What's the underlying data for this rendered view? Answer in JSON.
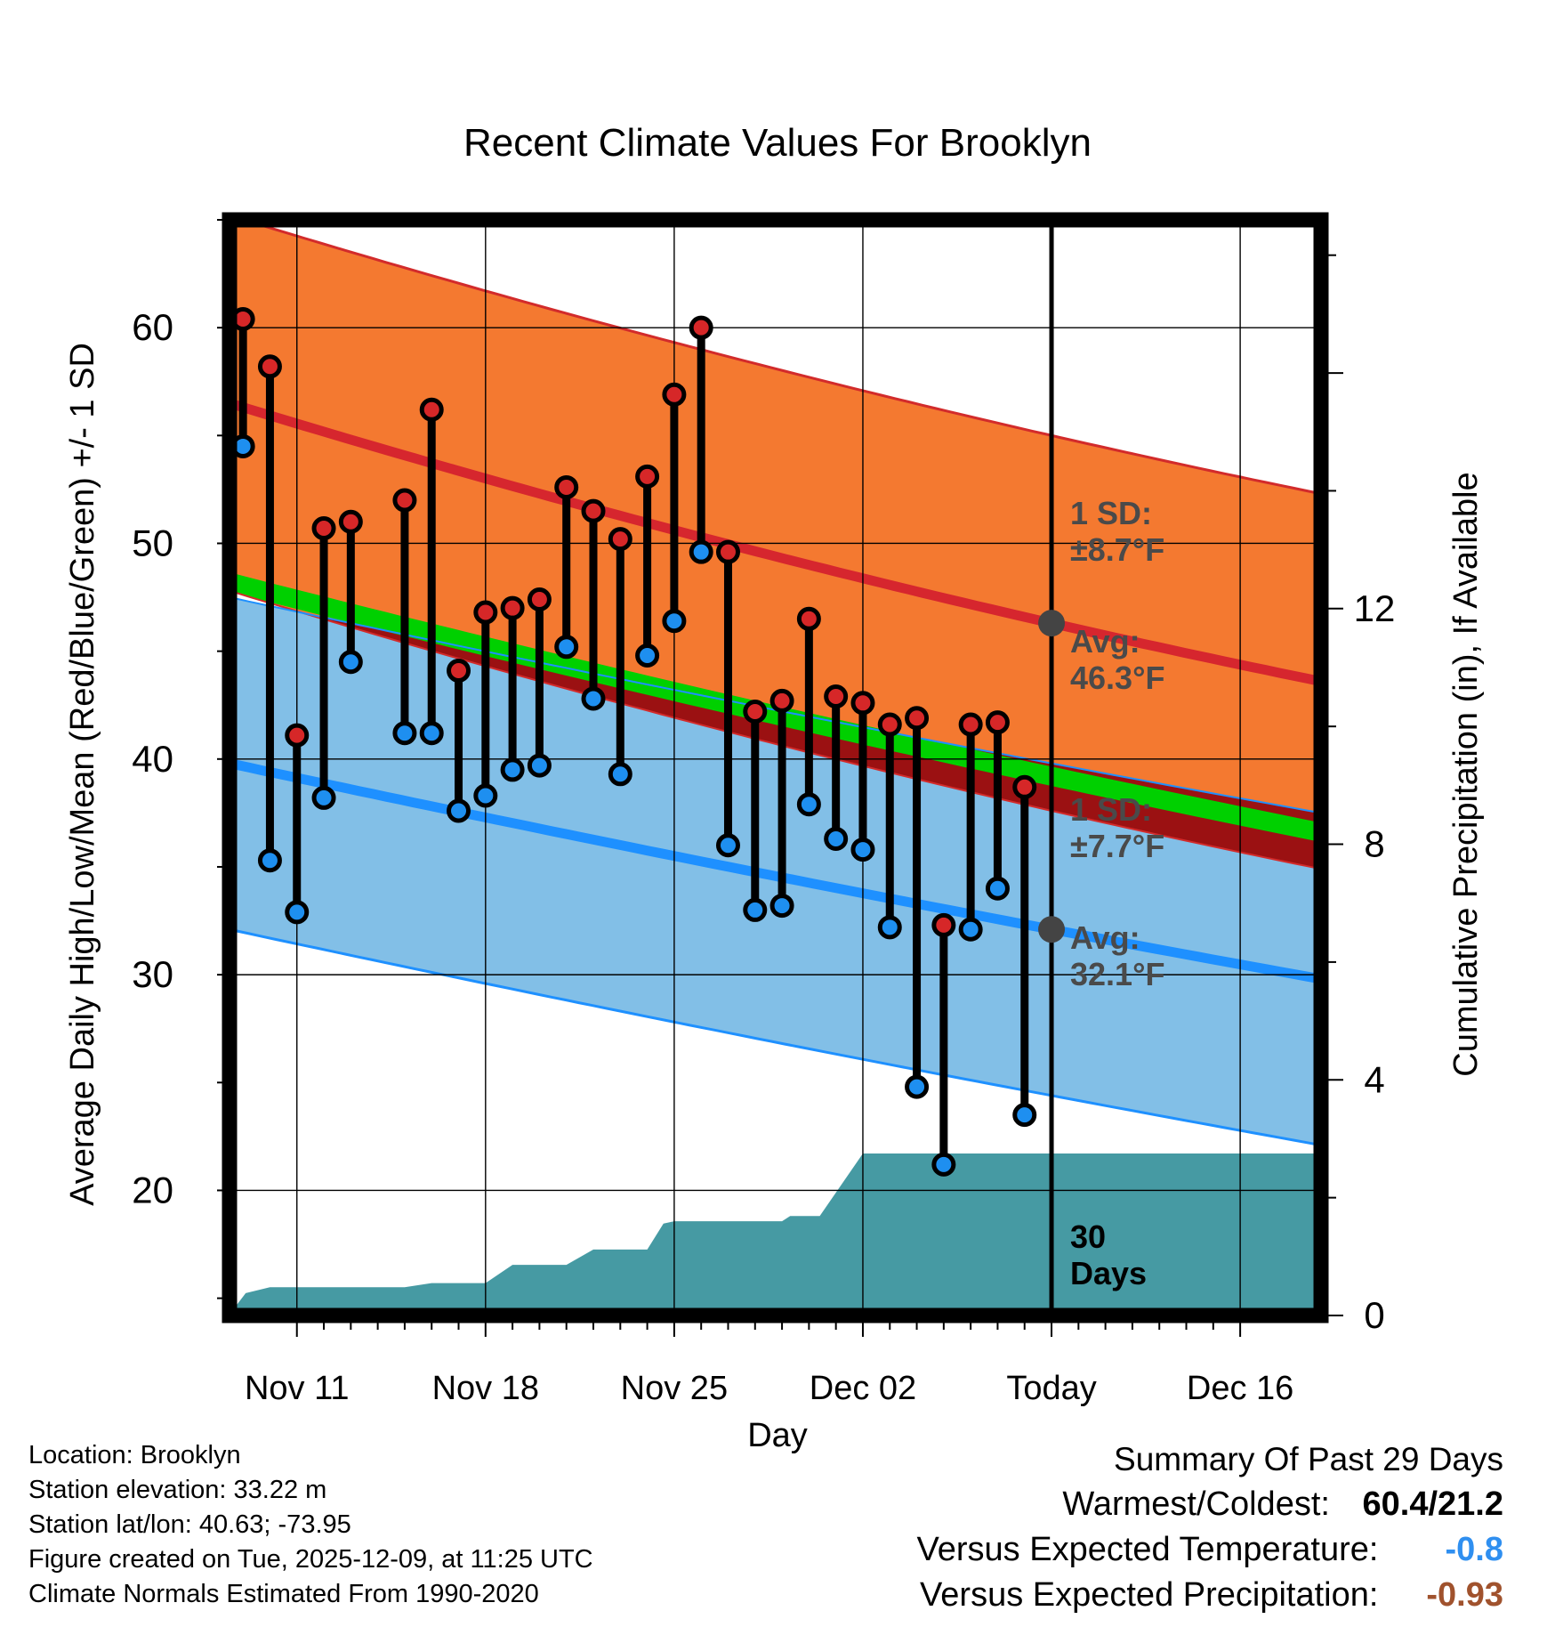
{
  "chart_data": {
    "type": "line",
    "title": "Recent Climate Values For Brooklyn",
    "xlabel": "Day",
    "ylabel_left": "Average Daily High/Low/Mean (Red/Blue/Green) +/- 1 SD",
    "ylabel_right": "Cumulative Precipitation (in), If Available",
    "ylim_left": [
      14.2,
      65
    ],
    "ylim_right": [
      0,
      18.6
    ],
    "xlim_days": [
      -30.5,
      10.0
    ],
    "x_ticks": [
      {
        "day": -28,
        "label": "Nov 11"
      },
      {
        "day": -21,
        "label": "Nov 18"
      },
      {
        "day": -14,
        "label": "Nov 25"
      },
      {
        "day": -7,
        "label": "Dec 02"
      },
      {
        "day": 0,
        "label": "Today"
      },
      {
        "day": 7,
        "label": "Dec 16"
      }
    ],
    "y_ticks_left": [
      "20",
      "30",
      "40",
      "50",
      "60"
    ],
    "y_tick_values_left": [
      20,
      30,
      40,
      50,
      60
    ],
    "y_ticks_right": [
      "0",
      "4",
      "8",
      "12"
    ],
    "y_tick_values_right": [
      0,
      4,
      8,
      12
    ],
    "normals": {
      "high_avg": {
        "start": 56.5,
        "today": 46.3,
        "end": 43.6
      },
      "high_sd": 8.7,
      "mean_avg": {
        "start": 48.2,
        "today": 39.2,
        "end": 36.6
      },
      "low_avg": {
        "start": 39.8,
        "today": 32.1,
        "end": 29.8
      },
      "low_sd": 7.7
    },
    "series": [
      {
        "name": "Daily High",
        "days": [
          -30,
          -29,
          -28,
          -27,
          -26,
          -24,
          -23,
          -22,
          -21,
          -20,
          -19,
          -18,
          -17,
          -16,
          -15,
          -14,
          -13,
          -12,
          -11,
          -10,
          -9,
          -8,
          -7,
          -6,
          -5,
          -4,
          -3,
          -2,
          -1
        ],
        "values": [
          60.4,
          58.2,
          41.1,
          50.7,
          51.0,
          52.0,
          56.2,
          44.1,
          46.8,
          47.0,
          47.4,
          52.6,
          51.5,
          50.2,
          53.1,
          56.9,
          60.0,
          49.6,
          42.2,
          42.7,
          46.5,
          42.9,
          42.6,
          41.6,
          41.9,
          32.3,
          41.6,
          41.7,
          38.7
        ]
      },
      {
        "name": "Daily Low",
        "days": [
          -30,
          -29,
          -28,
          -27,
          -26,
          -24,
          -23,
          -22,
          -21,
          -20,
          -19,
          -18,
          -17,
          -16,
          -15,
          -14,
          -13,
          -12,
          -11,
          -10,
          -9,
          -8,
          -7,
          -6,
          -5,
          -4,
          -3,
          -2,
          -1
        ],
        "values": [
          54.5,
          35.3,
          32.9,
          38.2,
          44.5,
          41.2,
          41.2,
          37.6,
          38.3,
          39.5,
          39.7,
          45.2,
          42.8,
          39.3,
          44.8,
          46.4,
          49.6,
          36.0,
          33.0,
          33.2,
          37.9,
          36.3,
          35.8,
          32.2,
          24.8,
          21.2,
          32.1,
          34.0,
          23.5
        ]
      }
    ],
    "precipitation": {
      "name": "Cumulative Precipitation",
      "days": [
        -30.5,
        -29.9,
        -29,
        -26,
        -25,
        -24,
        -23,
        -21.5,
        -21,
        -20,
        -18.5,
        -18,
        -17,
        -16.5,
        -15,
        -14.4,
        -14,
        -13.7,
        -11,
        -10,
        -9.7,
        -9,
        -8.6,
        -7,
        -6.6,
        10
      ],
      "values": [
        0.02,
        0.38,
        0.48,
        0.48,
        0.48,
        0.48,
        0.55,
        0.55,
        0.55,
        0.86,
        0.86,
        0.86,
        1.12,
        1.12,
        1.12,
        1.56,
        1.6,
        1.6,
        1.6,
        1.6,
        1.69,
        1.69,
        1.69,
        2.75,
        2.75,
        2.75
      ]
    },
    "annotations": [
      {
        "line1": "1 SD:",
        "line2": "±8.7°F"
      },
      {
        "line1": "Avg:",
        "line2": "46.3°F"
      },
      {
        "line1": "1 SD:",
        "line2": "±7.7°F"
      },
      {
        "line1": "Avg:",
        "line2": "32.1°F"
      },
      {
        "line1": "30",
        "line2": "Days"
      }
    ],
    "colors": {
      "high_band": "#f47930",
      "high_line": "#d6262e",
      "mean_band": "#00d000",
      "mean_dark": "#9b1112",
      "low_band": "#82bfe7",
      "low_line": "#1e90ff",
      "precip": "#469aa3",
      "point_high": "#d62728",
      "point_low": "#1e8ff0",
      "today_marker": "#444444",
      "annotation": "#4a4a4a"
    }
  },
  "footer": {
    "location": "Location: Brooklyn",
    "elevation": "Station elevation: 33.22 m",
    "latlon": "Station lat/lon: 40.63; -73.95",
    "created": "Figure created on Tue, 2025-12-09, at 11:25 UTC",
    "normals": "Climate Normals Estimated From 1990-2020"
  },
  "summary": {
    "title": "Summary Of Past 29 Days",
    "warmest_label": "Warmest/Coldest:",
    "warmest_value": "60.4/21.2",
    "temp_label": "Versus Expected Temperature:",
    "temp_value": "-0.8",
    "temp_color": "#2f8ff0",
    "precip_label": "Versus Expected Precipitation:",
    "precip_value": "-0.93",
    "precip_color": "#a0522d"
  }
}
